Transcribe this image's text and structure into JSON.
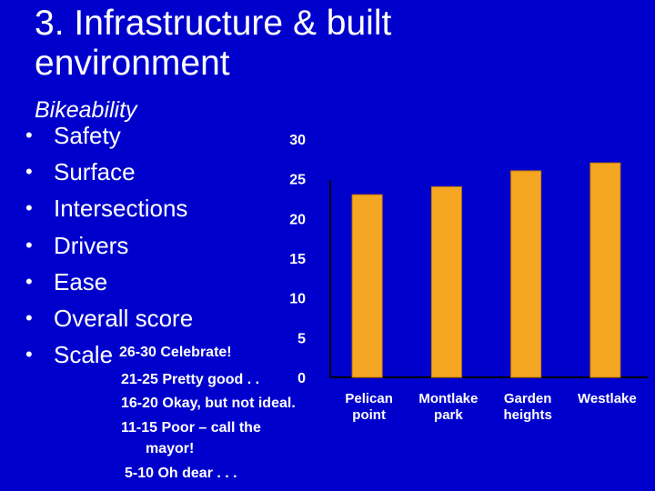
{
  "slide": {
    "title": "3. Infrastructure & built environment",
    "subtitle": "Bikeability",
    "bullets": [
      "Safety",
      "Surface",
      "Intersections",
      "Drivers",
      "Ease",
      "Overall score",
      "Scale"
    ],
    "scale_notes": [
      "26-30 Celebrate!",
      "21-25 Pretty good . .",
      "16-20 Okay, but not ideal.",
      "11-15 Poor – call the",
      "mayor!",
      "5-10 Oh dear . . ."
    ]
  },
  "colors": {
    "background": "#0000CC",
    "bar": "#F5A623",
    "bar_edge": "#C67A00",
    "text": "#FFFFFF"
  },
  "chart_data": {
    "type": "bar",
    "categories": [
      [
        "Pelican",
        "point"
      ],
      [
        "Montlake",
        "park"
      ],
      [
        "Garden",
        "heights"
      ],
      [
        "Westlake"
      ]
    ],
    "values": [
      23,
      24,
      26,
      27
    ],
    "ylim": [
      0,
      30
    ],
    "yticks": [
      "0",
      "5",
      "10",
      "15",
      "20",
      "25",
      "30"
    ],
    "grid": false,
    "legend": "none"
  }
}
